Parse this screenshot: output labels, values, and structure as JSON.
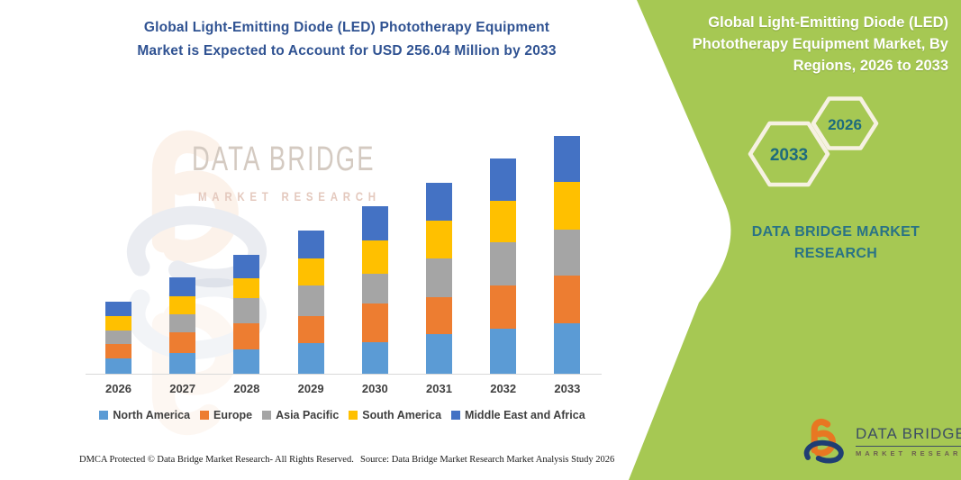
{
  "headline": {
    "line1": "Global Light-Emitting Diode (LED) Phototherapy Equipment",
    "line2": "Market is Expected to Account for USD 256.04 Million by 2033"
  },
  "watermark": {
    "line1": "DATA BRIDGE",
    "line2": "MARKET RESEARCH"
  },
  "chart_data": {
    "type": "bar",
    "stacked": true,
    "title": "Global Light-Emitting Diode (LED) Phototherapy Equipment Market is Expected to Account for USD 256.04 Million by 2033",
    "unit": "USD Million",
    "xlabel": "",
    "ylabel": "",
    "y_axis_visible": false,
    "grid": false,
    "legend_position": "bottom",
    "total_2033_label": "USD 256.04 Million",
    "categories": [
      "2026",
      "2027",
      "2028",
      "2029",
      "2030",
      "2031",
      "2032",
      "2033"
    ],
    "series": [
      {
        "name": "North America",
        "color": "#5B9BD5",
        "values": [
          16.2,
          22.6,
          25.9,
          33.0,
          34.0,
          42.7,
          48.5,
          54.3
        ]
      },
      {
        "name": "Europe",
        "color": "#ED7D31",
        "values": [
          16.2,
          22.0,
          28.4,
          29.1,
          42.0,
          39.8,
          46.9,
          51.7
        ]
      },
      {
        "name": "Asia Pacific",
        "color": "#A5A5A5",
        "values": [
          14.6,
          19.4,
          27.5,
          32.7,
          31.7,
          42.0,
          46.3,
          49.2
        ]
      },
      {
        "name": "South America",
        "color": "#FFC000",
        "values": [
          14.6,
          19.1,
          20.7,
          29.7,
          36.2,
          40.4,
          44.3,
          51.7
        ]
      },
      {
        "name": "Middle East and Africa",
        "color": "#4472C4",
        "values": [
          16.2,
          21.0,
          25.9,
          29.8,
          36.3,
          41.0,
          45.9,
          49.2
        ]
      }
    ],
    "totals": [
      77.8,
      104.1,
      128.4,
      154.3,
      180.2,
      205.9,
      231.9,
      256.1
    ]
  },
  "right_panel": {
    "bg_color": "#a6c853",
    "border_color": "#f6f1e2",
    "year_color": "#1e6b7d",
    "title_lines": [
      "Global Light-Emitting Diode (LED)",
      "Phototherapy Equipment Market, By",
      "Regions, 2026 to 2033"
    ],
    "hexagon_large_year": "2033",
    "hexagon_small_year": "2026",
    "brand_line1": "DATA BRIDGE MARKET",
    "brand_line2": "RESEARCH"
  },
  "logo": {
    "name": "DATA BRIDGE",
    "subtitle": "MARKET RESEARCH"
  },
  "footer": {
    "left": "DMCA Protected © Data Bridge Market Research-  All Rights Reserved.",
    "source": "Source: Data Bridge Market Research  Market Analysis Study 2026"
  }
}
